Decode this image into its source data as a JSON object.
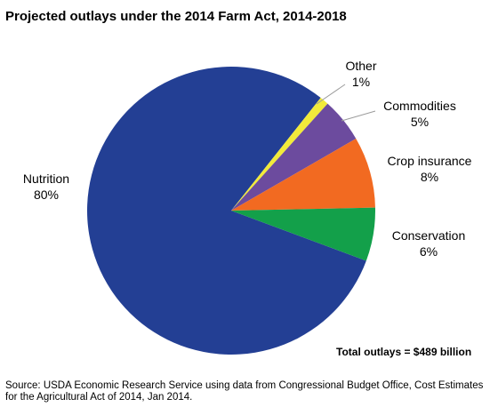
{
  "chart_data": {
    "type": "pie",
    "title": "Projected outlays under the 2014 Farm Act, 2014-2018",
    "slices": [
      {
        "name": "Nutrition",
        "label": "80%",
        "value": 80,
        "color": "#233f94"
      },
      {
        "name": "Other",
        "label": "1%",
        "value": 1,
        "color": "#f2ea3a"
      },
      {
        "name": "Commodities",
        "label": "5%",
        "value": 5,
        "color": "#6c4b9e"
      },
      {
        "name": "Crop insurance",
        "label": "8%",
        "value": 8,
        "color": "#f26a21"
      },
      {
        "name": "Conservation",
        "label": "6%",
        "value": 6,
        "color": "#13a04a"
      }
    ],
    "annotation": "Total outlays = $489 billion",
    "source": "Source: USDA Economic Research Service using data from Congressional Budget Office, Cost Estimates for the Agricultural Act of 2014, Jan 2014."
  }
}
